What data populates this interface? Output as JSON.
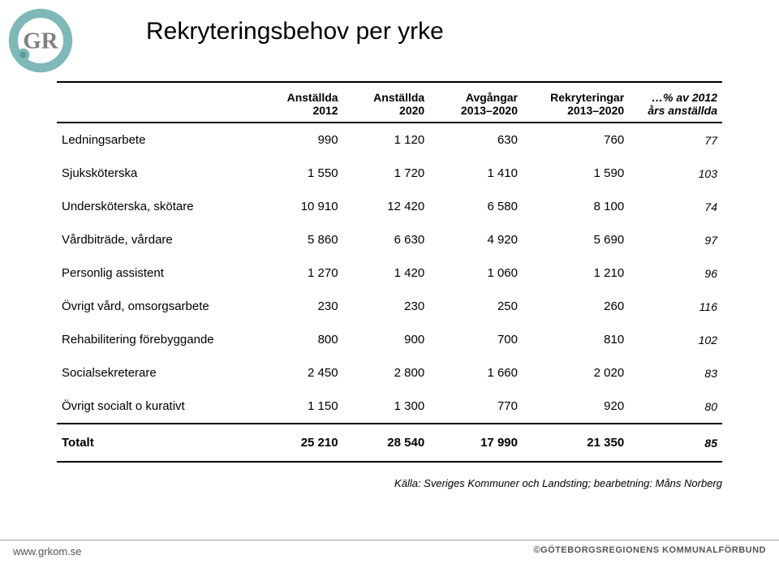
{
  "title": "Rekryteringsbehov per yrke",
  "logo": {
    "outer_color": "#7fb8b8",
    "inner_color": "#808080",
    "letter": "GR"
  },
  "table": {
    "header_fontsize": 14,
    "body_fontsize": 15,
    "italic_col_fontsize": 14,
    "border_color": "#000000",
    "columns": [
      {
        "line1": "",
        "line2": "",
        "align": "left"
      },
      {
        "line1": "Anställda",
        "line2": "2012",
        "align": "right"
      },
      {
        "line1": "Anställda",
        "line2": "2020",
        "align": "right"
      },
      {
        "line1": "Avgångar",
        "line2": "2013–2020",
        "align": "right"
      },
      {
        "line1": "Rekryteringar",
        "line2": "2013–2020",
        "align": "right"
      },
      {
        "line1": "…% av 2012",
        "line2": "års anställda",
        "align": "right",
        "italic": true
      }
    ],
    "rows": [
      {
        "label": "Ledningsarbete",
        "c1": "990",
        "c2": "1 120",
        "c3": "630",
        "c4": "760",
        "c5": "77"
      },
      {
        "label": "Sjuksköterska",
        "c1": "1 550",
        "c2": "1 720",
        "c3": "1 410",
        "c4": "1 590",
        "c5": "103"
      },
      {
        "label": "Undersköterska, skötare",
        "c1": "10 910",
        "c2": "12 420",
        "c3": "6 580",
        "c4": "8 100",
        "c5": "74"
      },
      {
        "label": "Vårdbiträde, vårdare",
        "c1": "5 860",
        "c2": "6 630",
        "c3": "4 920",
        "c4": "5 690",
        "c5": "97"
      },
      {
        "label": "Personlig assistent",
        "c1": "1 270",
        "c2": "1 420",
        "c3": "1 060",
        "c4": "1 210",
        "c5": "96"
      },
      {
        "label": "Övrigt vård, omsorgsarbete",
        "c1": "230",
        "c2": "230",
        "c3": "250",
        "c4": "260",
        "c5": "116"
      },
      {
        "label": "Rehabilitering förebyggande",
        "c1": "800",
        "c2": "900",
        "c3": "700",
        "c4": "810",
        "c5": "102"
      },
      {
        "label": "Socialsekreterare",
        "c1": "2 450",
        "c2": "2 800",
        "c3": "1 660",
        "c4": "2 020",
        "c5": "83"
      },
      {
        "label": "Övrigt socialt o kurativt",
        "c1": "1 150",
        "c2": "1 300",
        "c3": "770",
        "c4": "920",
        "c5": "80"
      }
    ],
    "total": {
      "label": "Totalt",
      "c1": "25 210",
      "c2": "28 540",
      "c3": "17 990",
      "c4": "21 350",
      "c5": "85"
    }
  },
  "source": "Källa: Sveriges Kommuner och Landsting; bearbetning: Måns Norberg",
  "footer": {
    "left": "www.grkom.se",
    "right": "©GÖTEBORGSREGIONENS KOMMUNALFÖRBUND"
  },
  "col_widths": [
    "30%",
    "13%",
    "13%",
    "14%",
    "16%",
    "14%"
  ]
}
